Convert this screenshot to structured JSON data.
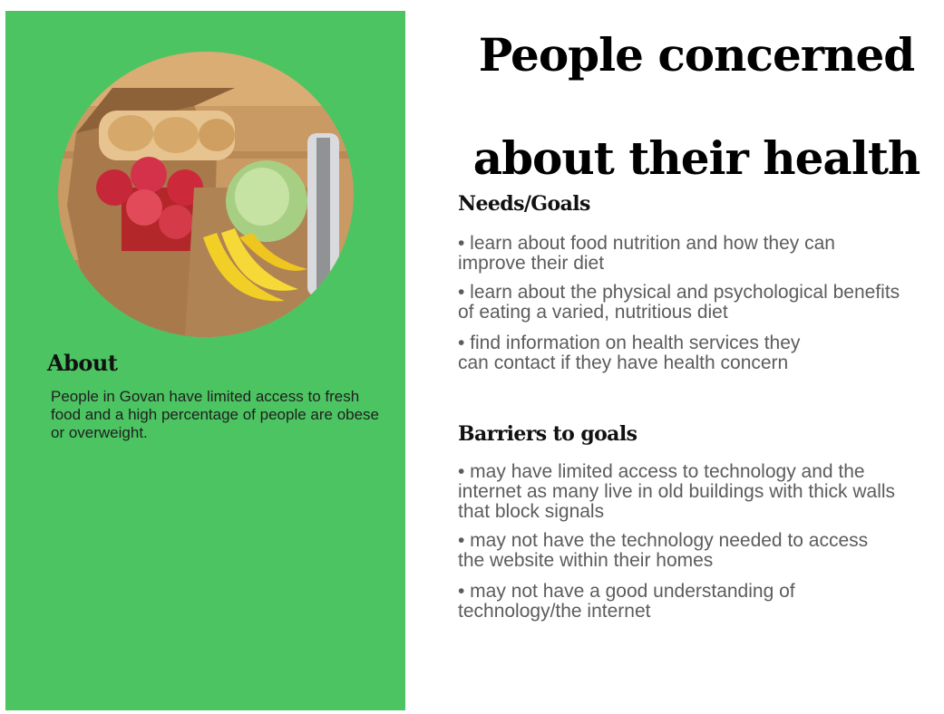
{
  "title": "People concerned about their health",
  "about": {
    "heading": "About",
    "text": "People in Govan have limited access to fresh food and a high percentage of people are obese or overweight."
  },
  "needs": {
    "heading": "Needs/Goals",
    "items": [
      "• learn about food nutrition and how they can improve their diet",
      "• learn about the physical and psychological benefits of eating a varied, nutritious diet",
      "• find information on health services they can contact if they have health concern"
    ]
  },
  "barriers": {
    "heading": "Barriers to goals",
    "items": [
      "• may have limited access to technology and the internet as many live in old buildings with thick walls that block signals",
      "• may not have the technology needed to access the website within their homes",
      "• may not have a good understanding of technology/the internet"
    ]
  },
  "colors": {
    "panel": "#4cc462"
  }
}
